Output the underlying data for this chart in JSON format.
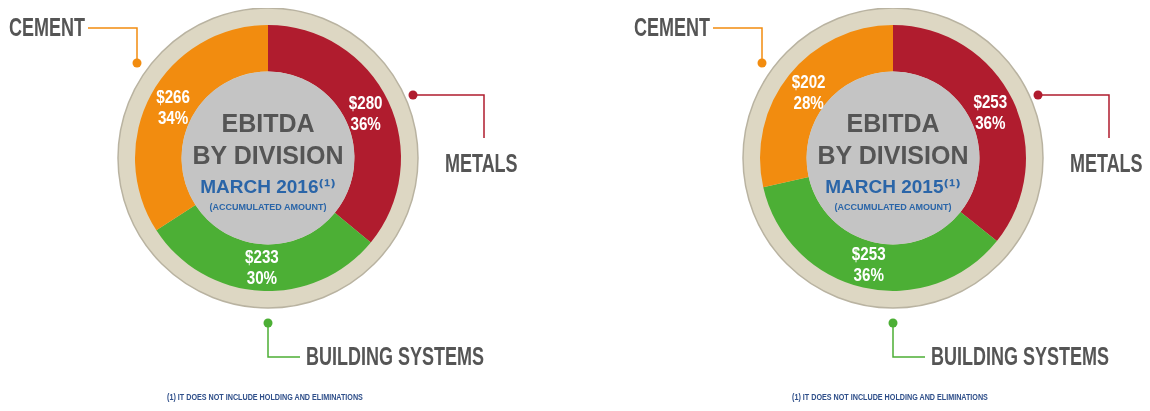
{
  "chart_data": [
    {
      "type": "donut",
      "title": "EBITDA BY DIVISION",
      "subtitle": "MARCH 2016⁽¹⁾",
      "categories": [
        "METALS",
        "BUILDING SYSTEMS",
        "CEMENT"
      ],
      "values": [
        280,
        233,
        266
      ],
      "value_labels": [
        "$280\n36%",
        "$233\n30%",
        "$266\n34%"
      ],
      "colors": [
        "#b01c2e",
        "#4caf35",
        "#f28c0f"
      ],
      "legend": "right",
      "annotations": [
        "(ACCUMULATED AMOUNT)",
        "(1) IT DOES NOT INCLUDE HOLDING AND ELIMINATIONS"
      ]
    },
    {
      "type": "donut",
      "title": "EBITDA BY DIVISION",
      "subtitle": "MARCH 2015⁽¹⁾",
      "categories": [
        "METALS",
        "BUILDING SYSTEMS",
        "CEMENT"
      ],
      "values": [
        253,
        253,
        202
      ],
      "value_labels": [
        "$253\n36%",
        "$253\n36%",
        "$202\n28%"
      ],
      "colors": [
        "#b01c2e",
        "#4caf35",
        "#f28c0f"
      ],
      "legend": "right",
      "annotations": [
        "(ACCUMULATED AMOUNT)",
        "(1) IT DOES NOT INCLUDE HOLDING AND ELIMINATIONS"
      ]
    }
  ]
}
